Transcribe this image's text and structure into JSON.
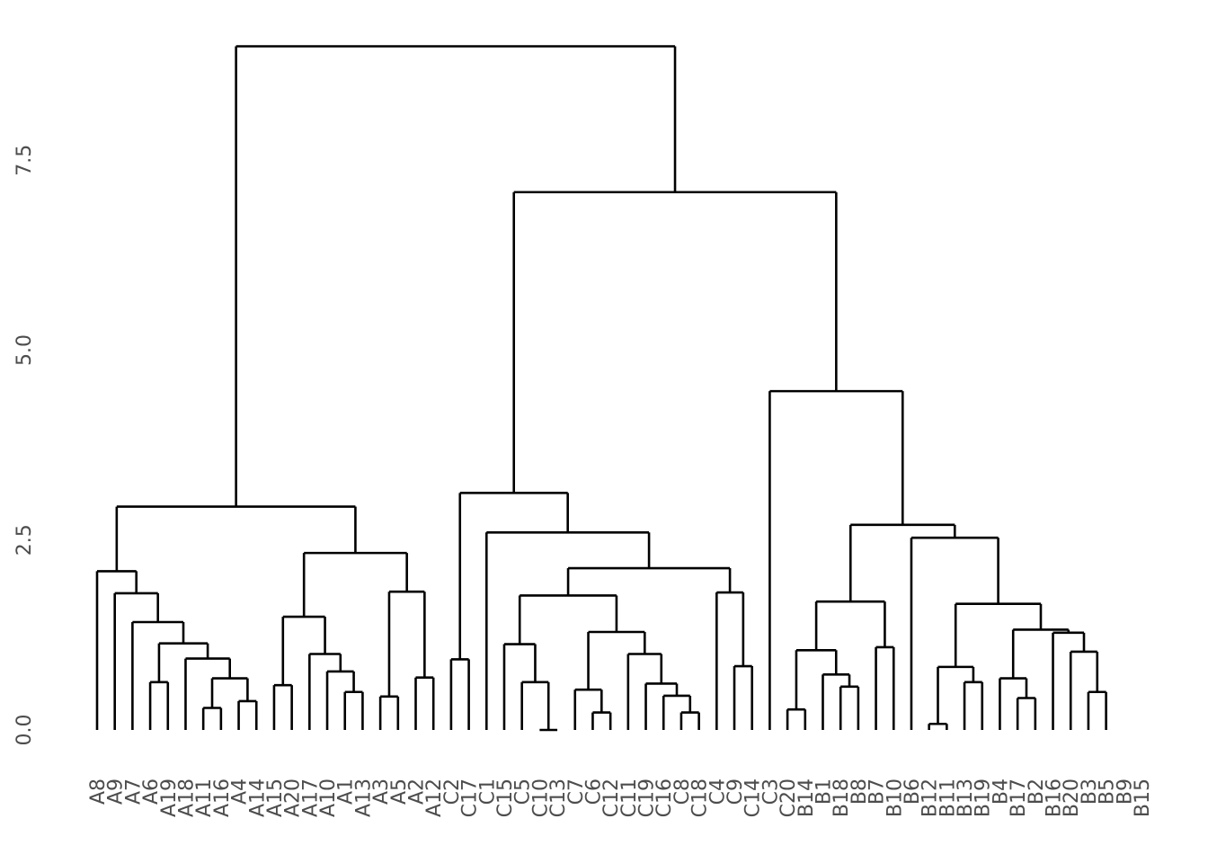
{
  "chart_data": {
    "type": "dendrogram",
    "title": "",
    "xlabel": "",
    "ylabel": "",
    "ylim": [
      0,
      9.2
    ],
    "yticks": [
      0.0,
      2.5,
      5.0,
      7.5
    ],
    "ytick_labels": [
      "0.0",
      "2.5",
      "5.0",
      "7.5"
    ],
    "grid": false,
    "line_color": "#000000",
    "label_color": "#4d4d4d",
    "leaves": [
      "A8",
      "A9",
      "A7",
      "A6",
      "A19",
      "A18",
      "A11",
      "A16",
      "A4",
      "A14",
      "A15",
      "A20",
      "A17",
      "A10",
      "A1",
      "A13",
      "A3",
      "A5",
      "A2",
      "A12",
      "C2",
      "C17",
      "C1",
      "C15",
      "C5",
      "C10",
      "C13",
      "C7",
      "C6",
      "C12",
      "C11",
      "C19",
      "C16",
      "C8",
      "C18",
      "C4",
      "C9",
      "C14",
      "C3",
      "C20",
      "B14",
      "B1",
      "B18",
      "B8",
      "B7",
      "B10",
      "B6",
      "B12",
      "B11",
      "B13",
      "B19",
      "B4",
      "B17",
      "B2",
      "B16",
      "B20",
      "B3",
      "B5",
      "B9",
      "B15"
    ],
    "tree": {
      "h": 9.0,
      "c": [
        {
          "h": 2.94,
          "c": [
            {
              "h": 2.09,
              "c": [
                "A8",
                {
                  "h": 1.8,
                  "c": [
                    "A9",
                    {
                      "h": 1.42,
                      "c": [
                        "A7",
                        {
                          "h": 1.14,
                          "c": [
                            {
                              "h": 0.63,
                              "c": [
                                "A6",
                                "A19"
                              ]
                            },
                            {
                              "h": 0.94,
                              "c": [
                                "A18",
                                {
                                  "h": 0.68,
                                  "c": [
                                    {
                                      "h": 0.29,
                                      "c": [
                                        "A11",
                                        "A16"
                                      ]
                                    },
                                    {
                                      "h": 0.38,
                                      "c": [
                                        "A4",
                                        "A14"
                                      ]
                                    }
                                  ]
                                }
                              ]
                            }
                          ]
                        }
                      ]
                    }
                  ]
                }
              ]
            },
            {
              "h": 2.33,
              "c": [
                {
                  "h": 1.49,
                  "c": [
                    {
                      "h": 0.59,
                      "c": [
                        "A15",
                        "A20"
                      ]
                    },
                    {
                      "h": 1.0,
                      "c": [
                        "A17",
                        {
                          "h": 0.77,
                          "c": [
                            "A10",
                            {
                              "h": 0.5,
                              "c": [
                                "A1",
                                "A13"
                              ]
                            }
                          ]
                        }
                      ]
                    }
                  ]
                },
                {
                  "h": 1.82,
                  "c": [
                    {
                      "h": 0.44,
                      "c": [
                        "A3",
                        "A5"
                      ]
                    },
                    {
                      "h": 0.69,
                      "c": [
                        "A2",
                        "A12"
                      ]
                    }
                  ]
                }
              ]
            }
          ]
        },
        {
          "h": 7.08,
          "c": [
            {
              "h": 3.12,
              "c": [
                {
                  "h": 0.93,
                  "c": [
                    "C2",
                    "C17"
                  ]
                },
                {
                  "h": 2.6,
                  "c": [
                    "C1",
                    {
                      "h": 2.13,
                      "c": [
                        {
                          "h": 1.77,
                          "c": [
                            {
                              "h": 1.13,
                              "c": [
                                "C15",
                                {
                                  "h": 0.63,
                                  "c": [
                                    "C5",
                                    {
                                      "h": 0.0,
                                      "c": [
                                        "C10",
                                        "C13"
                                      ]
                                    }
                                  ]
                                }
                              ]
                            },
                            {
                              "h": 1.29,
                              "c": [
                                {
                                  "h": 0.53,
                                  "c": [
                                    "C7",
                                    {
                                      "h": 0.23,
                                      "c": [
                                        "C6",
                                        "C12"
                                      ]
                                    }
                                  ]
                                },
                                {
                                  "h": 1.0,
                                  "c": [
                                    "C11",
                                    {
                                      "h": 0.61,
                                      "c": [
                                        "C19",
                                        {
                                          "h": 0.45,
                                          "c": [
                                            "C16",
                                            {
                                              "h": 0.23,
                                              "c": [
                                                "C8",
                                                "C18"
                                              ]
                                            }
                                          ]
                                        }
                                      ]
                                    }
                                  ]
                                }
                              ]
                            }
                          ]
                        },
                        {
                          "h": 1.81,
                          "c": [
                            "C4",
                            {
                              "h": 0.84,
                              "c": [
                                "C9",
                                "C14"
                              ]
                            }
                          ]
                        }
                      ]
                    }
                  ]
                }
              ]
            },
            {
              "h": 4.46,
              "c": [
                "C3",
                {
                  "h": 2.7,
                  "c": [
                    {
                      "h": 1.69,
                      "c": [
                        {
                          "h": 1.05,
                          "c": [
                            {
                              "h": 0.27,
                              "c": [
                                "C20",
                                "B14"
                              ]
                            },
                            {
                              "h": 0.73,
                              "c": [
                                "B1",
                                {
                                  "h": 0.57,
                                  "c": [
                                    "B18",
                                    "B8"
                                  ]
                                }
                              ]
                            }
                          ]
                        },
                        {
                          "h": 1.09,
                          "c": [
                            "B7",
                            "B10"
                          ]
                        }
                      ]
                    },
                    {
                      "h": 2.53,
                      "c": [
                        "B6",
                        {
                          "h": 1.66,
                          "c": [
                            {
                              "h": 0.83,
                              "c": [
                                {
                                  "h": 0.08,
                                  "c": [
                                    "B12",
                                    "B11"
                                  ]
                                },
                                {
                                  "h": 0.63,
                                  "c": [
                                    "B13",
                                    "B19"
                                  ]
                                }
                              ]
                            },
                            {
                              "h": 1.32,
                              "c": [
                                {
                                  "h": 0.68,
                                  "c": [
                                    "B4",
                                    {
                                      "h": 0.42,
                                      "c": [
                                        "B17",
                                        "B2"
                                      ]
                                    }
                                  ]
                                },
                                {
                                  "h": 1.28,
                                  "c": [
                                    "B16",
                                    {
                                      "h": 1.03,
                                      "c": [
                                        "B20",
                                        {
                                          "h": 0.5,
                                          "c": [
                                            "B3",
                                            "B5"
                                          ]
                                        }
                                      ]
                                    }
                                  ]
                                }
                              ]
                            }
                          ]
                        }
                      ]
                    }
                  ]
                }
              ]
            }
          ]
        }
      ]
    }
  }
}
